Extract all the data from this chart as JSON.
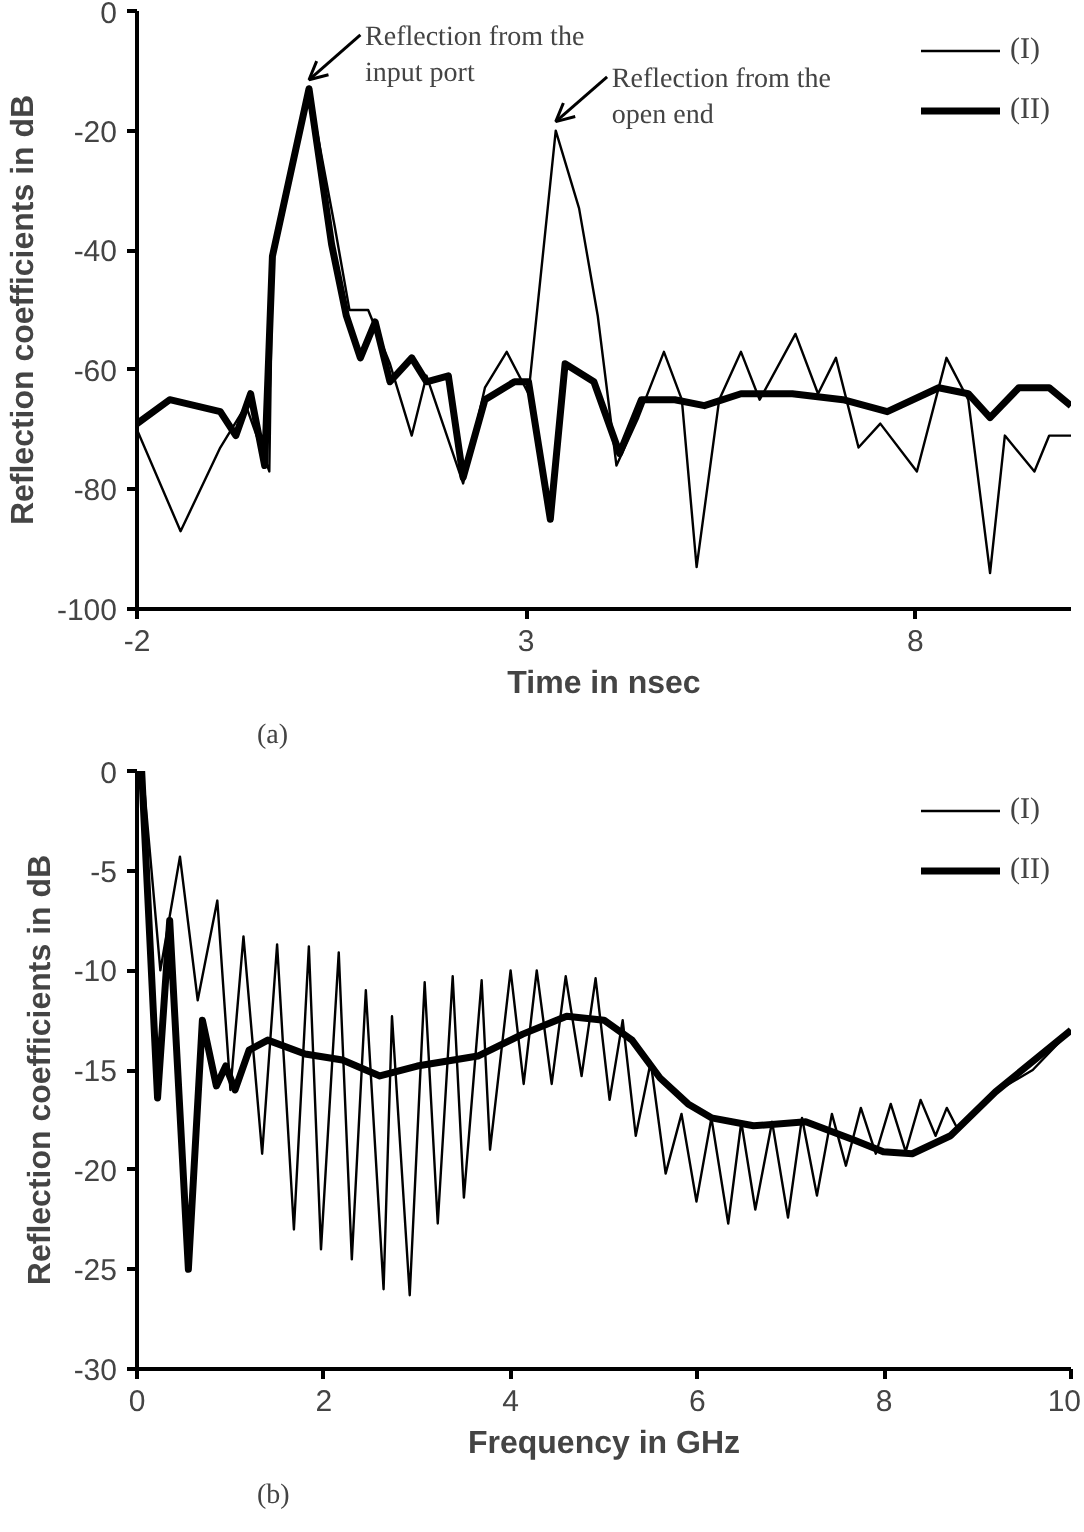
{
  "chart_data": [
    {
      "type": "line",
      "xlabel": "Time in nsec",
      "ylabel": "Reflection coefficients in dB",
      "xlim": [
        -2,
        10
      ],
      "xticks": [
        -2,
        3,
        8
      ],
      "ylim": [
        -100,
        0
      ],
      "yticks": [
        0,
        -20,
        -40,
        -60,
        -80,
        -100
      ],
      "grid": false,
      "legend": "top right",
      "marker": "none",
      "annotations": [
        {
          "text": "Reflection from the input port",
          "x": 0.21,
          "y": -13
        },
        {
          "text": "Reflection from the open end",
          "x": 3.38,
          "y": -20
        },
        "(a)"
      ],
      "series": [
        {
          "name": "(I)",
          "color": "#000000",
          "line_style": "solid",
          "x": [
            -2,
            -1.44,
            -0.93,
            -0.6,
            -0.3,
            -0.26,
            0.21,
            0.54,
            0.73,
            0.97,
            1.25,
            1.53,
            1.72,
            2.19,
            2.47,
            2.75,
            3.03,
            3.38,
            3.68,
            3.92,
            4.16,
            4.44,
            4.77,
            5.0,
            5.19,
            5.48,
            5.76,
            6.0,
            6.46,
            6.75,
            6.98,
            7.27,
            7.55,
            8.02,
            8.4,
            8.68,
            8.96,
            9.15,
            9.53,
            9.72,
            10.0
          ],
          "values": [
            -70,
            -87,
            -73,
            -66,
            -77,
            -41,
            -13,
            -36,
            -50,
            -50,
            -59,
            -71,
            -61,
            -79,
            -63,
            -57,
            -64,
            -20,
            -33,
            -51,
            -76,
            -68,
            -57,
            -65,
            -93,
            -65,
            -57,
            -65,
            -54,
            -64,
            -58,
            -73,
            -69,
            -77,
            -58,
            -65,
            -94,
            -71,
            -77,
            -71,
            -71
          ]
        },
        {
          "name": "(II)",
          "color": "#000000",
          "line_style": "solid",
          "x": [
            -2,
            -1.58,
            -0.93,
            -0.73,
            -0.54,
            -0.36,
            -0.26,
            0.21,
            0.5,
            0.69,
            0.87,
            1.06,
            1.25,
            1.53,
            1.72,
            2.0,
            2.19,
            2.47,
            2.85,
            3.03,
            3.31,
            3.5,
            3.87,
            4.2,
            4.48,
            4.91,
            5.29,
            5.76,
            6.42,
            7.07,
            7.64,
            8.3,
            8.68,
            8.96,
            9.33,
            9.72,
            10.0
          ],
          "values": [
            -69,
            -65,
            -67,
            -71,
            -64,
            -76,
            -41,
            -13,
            -39,
            -51,
            -58,
            -52,
            -62,
            -58,
            -62,
            -61,
            -78,
            -65,
            -62,
            -62,
            -85,
            -59,
            -62,
            -74,
            -65,
            -65,
            -66,
            -64,
            -64,
            -65,
            -67,
            -63,
            -64,
            -68,
            -63,
            -63,
            -66
          ]
        }
      ]
    },
    {
      "type": "line",
      "xlabel": "Frequency in GHz",
      "ylabel": "Reflection coefficients in dB",
      "xlim": [
        0,
        10
      ],
      "xticks": [
        0,
        2,
        4,
        6,
        8,
        10
      ],
      "ylim": [
        -30,
        0
      ],
      "yticks": [
        0,
        -5,
        -10,
        -15,
        -20,
        -25,
        -30
      ],
      "grid": false,
      "legend": "top right",
      "marker": "none",
      "annotations": [
        "(b)"
      ],
      "series": [
        {
          "name": "(I)",
          "color": "#000000",
          "line_style": "solid",
          "x": [
            0,
            0.08,
            0.25,
            0.46,
            0.65,
            0.86,
            1.0,
            1.14,
            1.34,
            1.5,
            1.68,
            1.84,
            1.97,
            2.16,
            2.3,
            2.45,
            2.64,
            2.73,
            2.92,
            3.08,
            3.22,
            3.38,
            3.5,
            3.69,
            3.78,
            4.0,
            4.14,
            4.28,
            4.44,
            4.59,
            4.76,
            4.91,
            5.06,
            5.2,
            5.34,
            5.5,
            5.66,
            5.83,
            5.99,
            6.15,
            6.33,
            6.47,
            6.62,
            6.8,
            6.97,
            7.12,
            7.28,
            7.44,
            7.59,
            7.75,
            7.91,
            8.07,
            8.23,
            8.39,
            8.55,
            8.67,
            8.79,
            9.19,
            9.59,
            10.0
          ],
          "values": [
            0,
            -1,
            -10,
            -4.3,
            -11.5,
            -6.5,
            -16,
            -8.3,
            -19.2,
            -8.7,
            -23,
            -8.8,
            -24,
            -9.1,
            -24.5,
            -11,
            -26,
            -12.3,
            -26.3,
            -10.6,
            -22.7,
            -10.3,
            -21.4,
            -10.5,
            -19,
            -10,
            -15.7,
            -10,
            -15.7,
            -10.3,
            -15.3,
            -10.4,
            -16.5,
            -12.5,
            -18.3,
            -14.6,
            -20.2,
            -17.2,
            -21.6,
            -17.4,
            -22.7,
            -17.6,
            -22,
            -17.6,
            -22.4,
            -17.4,
            -21.3,
            -17.2,
            -19.8,
            -16.9,
            -19.2,
            -16.7,
            -19.1,
            -16.5,
            -18.3,
            -16.9,
            -18,
            -16.1,
            -15,
            -13
          ]
        },
        {
          "name": "(II)",
          "color": "#000000",
          "line_style": "solid",
          "x": [
            0,
            0.05,
            0.22,
            0.35,
            0.55,
            0.7,
            0.85,
            0.95,
            1.05,
            1.2,
            1.4,
            1.8,
            2.2,
            2.6,
            3.0,
            3.65,
            4.13,
            4.6,
            5.0,
            5.3,
            5.6,
            5.9,
            6.15,
            6.6,
            7.16,
            7.67,
            7.99,
            8.3,
            8.71,
            9.19,
            10.0
          ],
          "values": [
            0,
            0,
            -16.4,
            -7.5,
            -25,
            -12.5,
            -15.8,
            -14.8,
            -16,
            -14,
            -13.5,
            -14.2,
            -14.5,
            -15.3,
            -14.8,
            -14.3,
            -13.2,
            -12.3,
            -12.5,
            -13.5,
            -15.4,
            -16.7,
            -17.4,
            -17.8,
            -17.6,
            -18.5,
            -19.1,
            -19.2,
            -18.3,
            -16.1,
            -13
          ]
        }
      ]
    }
  ]
}
